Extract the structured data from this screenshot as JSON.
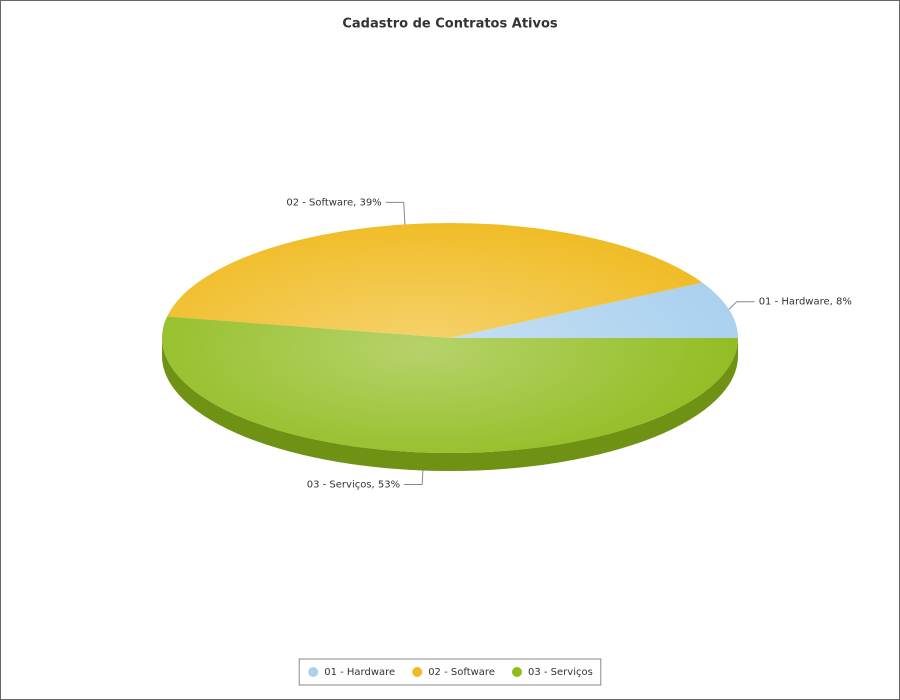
{
  "chart_data": {
    "type": "pie",
    "title": "Cadastro de Contratos Ativos",
    "categories": [
      "01 - Hardware",
      "02 - Software",
      "03 - Serviços"
    ],
    "values": [
      8,
      39,
      53
    ],
    "value_labels": [
      "01 - Hardware, 8%",
      "02 - Software, 39%",
      "03 - Serviços, 53%"
    ],
    "colors": [
      "#a9d0ee",
      "#f0bb22",
      "#8fbb1c"
    ],
    "legend": "bottom"
  }
}
